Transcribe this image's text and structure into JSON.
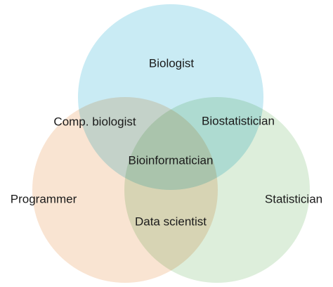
{
  "diagram": {
    "sets": [
      {
        "key": "biology",
        "label": "Biologist",
        "color": "#c9ebf4"
      },
      {
        "key": "programming",
        "label": "Programmer",
        "color": "#f9e4d2"
      },
      {
        "key": "statistics",
        "label": "Statistician",
        "color": "#ddeedb"
      }
    ],
    "intersections": {
      "biology_programming": "Comp. biologist",
      "biology_statistics": "Biostatistician",
      "programming_statistics": "Data scientist",
      "all": "Bioinformatician"
    }
  }
}
